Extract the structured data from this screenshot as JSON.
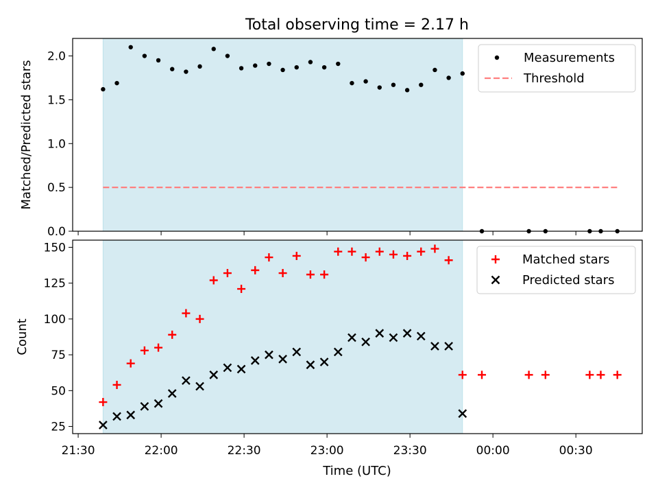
{
  "figure": {
    "title": "Total observing time = 2.17 h",
    "xlabel": "Time (UTC)",
    "x_ticks": [
      "21:30",
      "22:00",
      "22:30",
      "23:00",
      "23:30",
      "00:00",
      "00:30"
    ],
    "shaded_region": {
      "start": "21:39",
      "end": "23:49",
      "color": "#add8e6"
    }
  },
  "chart_data": [
    {
      "type": "scatter",
      "title": "Total observing time = 2.17 h",
      "ylabel": "Matched/Predicted stars",
      "xlim": [
        "21:28",
        "00:54"
      ],
      "ylim": [
        0,
        2.2
      ],
      "y_ticks": [
        "0.0",
        "0.5",
        "1.0",
        "1.5",
        "2.0"
      ],
      "legend_position": "top-right",
      "series": [
        {
          "name": "Measurements",
          "marker": "dot",
          "color": "#000000",
          "x": [
            "21:39",
            "21:44",
            "21:49",
            "21:54",
            "21:59",
            "22:04",
            "22:09",
            "22:14",
            "22:19",
            "22:24",
            "22:29",
            "22:34",
            "22:39",
            "22:44",
            "22:49",
            "22:54",
            "22:59",
            "23:04",
            "23:09",
            "23:14",
            "23:19",
            "23:24",
            "23:29",
            "23:34",
            "23:39",
            "23:44",
            "23:49",
            "23:56",
            "00:13",
            "00:19",
            "00:35",
            "00:39",
            "00:45"
          ],
          "y": [
            1.62,
            1.69,
            2.1,
            2.0,
            1.95,
            1.85,
            1.82,
            1.88,
            2.08,
            2.0,
            1.86,
            1.89,
            1.91,
            1.84,
            1.87,
            1.93,
            1.87,
            1.91,
            1.69,
            1.71,
            1.64,
            1.67,
            1.61,
            1.67,
            1.84,
            1.75,
            1.8,
            0,
            0,
            0,
            0,
            0,
            0
          ]
        },
        {
          "name": "Threshold",
          "line_style": "dashed",
          "color": "#ff7f7f",
          "x": [
            "21:39",
            "00:45"
          ],
          "y": [
            0.5,
            0.5
          ]
        }
      ]
    },
    {
      "type": "scatter",
      "ylabel": "Count",
      "xlim": [
        "21:28",
        "00:54"
      ],
      "ylim": [
        20,
        155
      ],
      "y_ticks": [
        "25",
        "50",
        "75",
        "100",
        "125",
        "150"
      ],
      "legend_position": "top-right",
      "series": [
        {
          "name": "Matched stars",
          "marker": "plus",
          "color": "#ff0000",
          "x": [
            "21:39",
            "21:44",
            "21:49",
            "21:54",
            "21:59",
            "22:04",
            "22:09",
            "22:14",
            "22:19",
            "22:24",
            "22:29",
            "22:34",
            "22:39",
            "22:44",
            "22:49",
            "22:54",
            "22:59",
            "23:04",
            "23:09",
            "23:14",
            "23:19",
            "23:24",
            "23:29",
            "23:34",
            "23:39",
            "23:44",
            "23:49",
            "23:56",
            "00:13",
            "00:19",
            "00:35",
            "00:39",
            "00:45"
          ],
          "y": [
            42,
            54,
            69,
            78,
            80,
            89,
            104,
            100,
            127,
            132,
            121,
            134,
            143,
            132,
            144,
            131,
            131,
            147,
            147,
            143,
            147,
            145,
            144,
            147,
            149,
            141,
            61,
            61,
            61,
            61,
            61,
            61,
            61
          ]
        },
        {
          "name": "Predicted stars",
          "marker": "x",
          "color": "#000000",
          "x": [
            "21:39",
            "21:44",
            "21:49",
            "21:54",
            "21:59",
            "22:04",
            "22:09",
            "22:14",
            "22:19",
            "22:24",
            "22:29",
            "22:34",
            "22:39",
            "22:44",
            "22:49",
            "22:54",
            "22:59",
            "23:04",
            "23:09",
            "23:14",
            "23:19",
            "23:24",
            "23:29",
            "23:34",
            "23:39",
            "23:44",
            "23:49"
          ],
          "y": [
            26,
            32,
            33,
            39,
            41,
            48,
            57,
            53,
            61,
            66,
            65,
            71,
            75,
            72,
            77,
            68,
            70,
            77,
            87,
            84,
            90,
            87,
            90,
            88,
            81,
            81,
            34
          ]
        }
      ]
    }
  ]
}
